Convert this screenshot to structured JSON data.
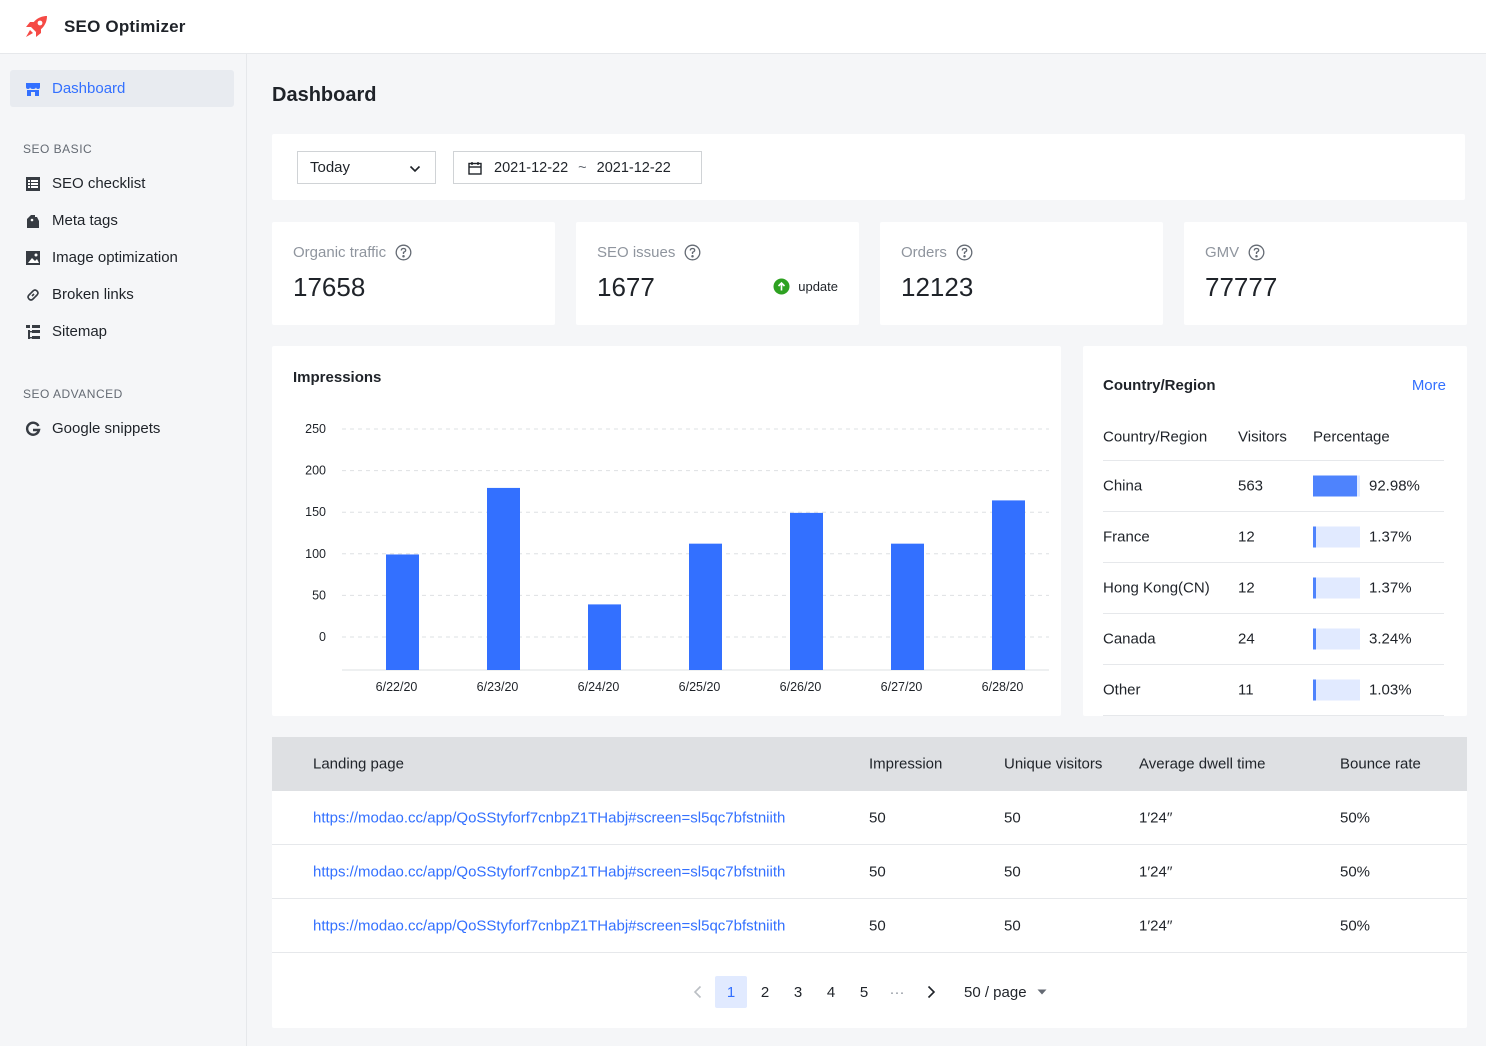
{
  "app": {
    "title": "SEO Optimizer",
    "logo_icon": "rocket-icon",
    "brand_color": "#f54a45"
  },
  "sidebar": {
    "dashboard": {
      "label": "Dashboard",
      "icon": "shop-icon"
    },
    "sections": [
      {
        "title": "SEO BASIC",
        "items": [
          {
            "label": "SEO checklist",
            "icon": "list-icon"
          },
          {
            "label": "Meta tags",
            "icon": "tag-icon"
          },
          {
            "label": "Image optimization",
            "icon": "image-icon"
          },
          {
            "label": "Broken links",
            "icon": "link-icon"
          },
          {
            "label": "Sitemap",
            "icon": "sitemap-icon"
          }
        ]
      },
      {
        "title": "SEO ADVANCED",
        "items": [
          {
            "label": "Google snippets",
            "icon": "google-icon"
          }
        ]
      }
    ]
  },
  "page": {
    "title": "Dashboard"
  },
  "filter": {
    "period": "Today",
    "start_date": "2021-12-22",
    "separator": "~",
    "end_date": "2021-12-22"
  },
  "stats": [
    {
      "label": "Organic traffic",
      "value": "17658"
    },
    {
      "label": "SEO issues",
      "value": "1677",
      "update_label": "update"
    },
    {
      "label": "Orders",
      "value": "12123"
    },
    {
      "label": "GMV",
      "value": "77777"
    }
  ],
  "impressions": {
    "title": "Impressions",
    "chart_data": {
      "type": "bar",
      "categories": [
        "6/22/20",
        "6/23/20",
        "6/24/20",
        "6/25/20",
        "6/26/20",
        "6/27/20",
        "6/28/20"
      ],
      "values": [
        110,
        190,
        50,
        123,
        160,
        123,
        175
      ],
      "yticks": [
        250,
        200,
        150,
        100,
        50,
        0
      ],
      "ylim": [
        0,
        250
      ],
      "grid": true,
      "bar_color": "#3370ff"
    }
  },
  "country": {
    "title": "Country/Region",
    "more_label": "More",
    "columns": [
      "Country/Region",
      "Visitors",
      "Percentage"
    ],
    "rows": [
      {
        "name": "China",
        "visitors": "563",
        "percent": "92.98%",
        "fraction": 0.9298
      },
      {
        "name": "France",
        "visitors": "12",
        "percent": "1.37%",
        "fraction": 0.0137
      },
      {
        "name": "Hong Kong(CN)",
        "visitors": "12",
        "percent": "1.37%",
        "fraction": 0.0137
      },
      {
        "name": "Canada",
        "visitors": "24",
        "percent": "3.24%",
        "fraction": 0.0324
      },
      {
        "name": "Other",
        "visitors": "11",
        "percent": "1.03%",
        "fraction": 0.0103
      }
    ]
  },
  "landing": {
    "columns": [
      "Landing page",
      "Impression",
      "Unique visitors",
      "Average dwell time",
      "Bounce rate"
    ],
    "rows": [
      {
        "url": "https://modao.cc/app/QoSStyforf7cnbpZ1THabj#screen=sl5qc7bfstniith",
        "impression": "50",
        "visitors": "50",
        "dwell": "1′24′′",
        "bounce": "50%"
      },
      {
        "url": "https://modao.cc/app/QoSStyforf7cnbpZ1THabj#screen=sl5qc7bfstniith",
        "impression": "50",
        "visitors": "50",
        "dwell": "1′24′′",
        "bounce": "50%"
      },
      {
        "url": "https://modao.cc/app/QoSStyforf7cnbpZ1THabj#screen=sl5qc7bfstniith",
        "impression": "50",
        "visitors": "50",
        "dwell": "1′24′′",
        "bounce": "50%"
      }
    ],
    "pagination": {
      "pages": [
        "1",
        "2",
        "3",
        "4",
        "5"
      ],
      "current": "1",
      "ellipsis": "···",
      "page_size": "50 / page"
    }
  }
}
